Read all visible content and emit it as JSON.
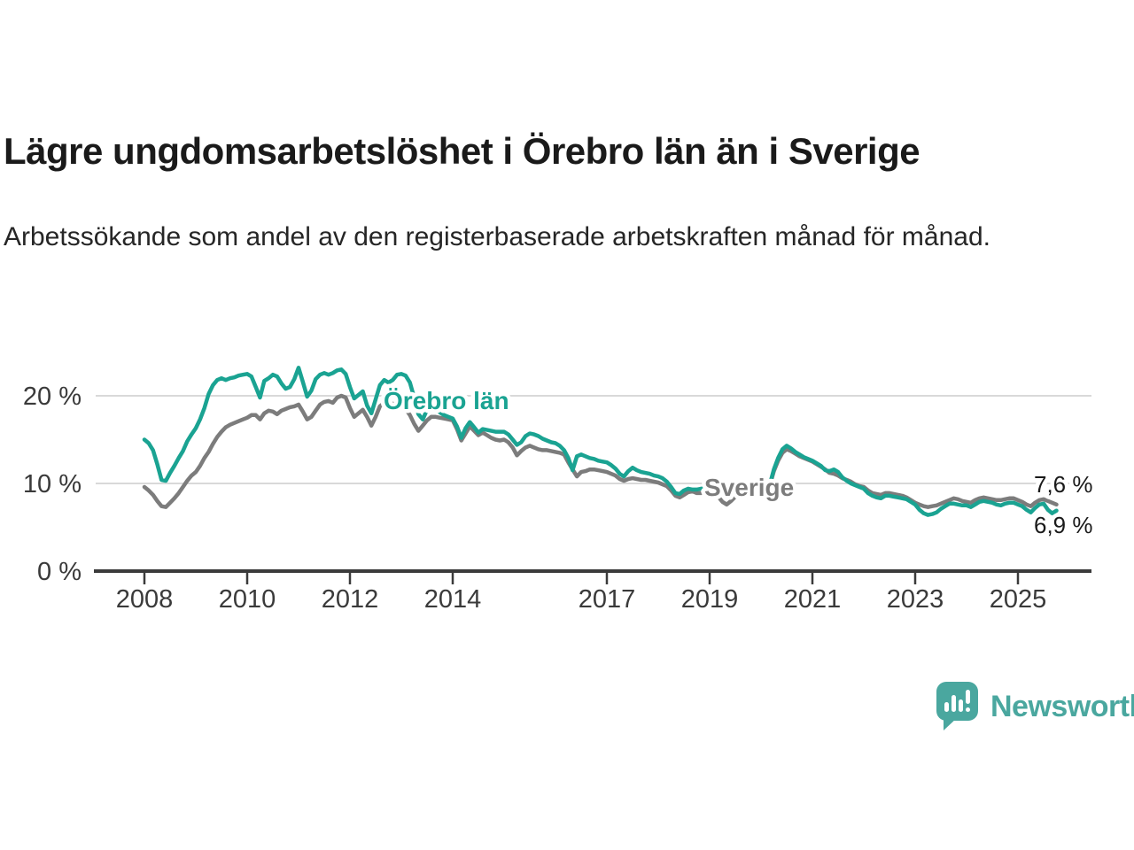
{
  "header": {
    "title": "Lägre ungdomsarbetslöshet i Örebro län än i Sverige",
    "subtitle": "Arbetssökande som andel av den registerbaserade arbetskraften månad för månad."
  },
  "chart_data": {
    "type": "line",
    "unit": "%",
    "frequency": "monthly",
    "x_start": "2008-01",
    "x_end": "2025-10",
    "x_tick_years": [
      2008,
      2010,
      2012,
      2014,
      2017,
      2019,
      2021,
      2023,
      2025
    ],
    "y_ticks": [
      {
        "value": 0,
        "label": "0 %"
      },
      {
        "value": 10,
        "label": "10 %"
      },
      {
        "value": 20,
        "label": "20 %"
      }
    ],
    "grid_values": [
      10,
      20
    ],
    "ylim": [
      0,
      25
    ],
    "grid": true,
    "legend_position": "inline-labels",
    "series": [
      {
        "name": "Örebro län",
        "color": "#1aa392",
        "end_label": "6,9 %",
        "end_value": 6.9,
        "values": [
          15.0,
          14.6,
          13.8,
          12.2,
          10.4,
          10.3,
          11.2,
          12.0,
          12.9,
          13.7,
          14.8,
          15.6,
          16.3,
          17.3,
          18.6,
          20.2,
          21.2,
          21.8,
          22.0,
          21.8,
          22.0,
          22.1,
          22.3,
          22.4,
          22.5,
          22.2,
          21.0,
          19.8,
          21.7,
          22.0,
          22.4,
          22.2,
          21.4,
          20.8,
          21.0,
          21.9,
          23.2,
          21.6,
          19.9,
          20.6,
          21.9,
          22.4,
          22.6,
          22.4,
          22.6,
          22.9,
          23.0,
          22.5,
          21.0,
          19.7,
          20.1,
          20.5,
          18.9,
          18.0,
          19.6,
          21.2,
          21.8,
          21.5,
          21.8,
          22.4,
          22.5,
          22.3,
          21.5,
          19.8,
          17.9,
          17.3,
          18.4,
          18.9,
          18.5,
          18.1,
          17.8,
          17.6,
          17.4,
          16.5,
          15.2,
          16.3,
          17.0,
          16.4,
          15.8,
          16.2,
          16.1,
          16.0,
          15.9,
          15.9,
          15.9,
          15.6,
          15.0,
          14.4,
          14.7,
          15.4,
          15.7,
          15.6,
          15.4,
          15.1,
          14.9,
          14.7,
          14.6,
          14.3,
          13.8,
          12.9,
          11.5,
          13.1,
          13.3,
          13.1,
          12.9,
          12.8,
          12.6,
          12.5,
          12.4,
          12.1,
          11.7,
          11.1,
          10.8,
          11.4,
          11.8,
          11.5,
          11.3,
          11.2,
          11.1,
          10.9,
          10.8,
          10.6,
          10.2,
          9.6,
          8.9,
          8.8,
          9.2,
          9.4,
          9.3,
          9.3,
          9.4,
          9.4,
          9.4,
          9.2,
          8.9,
          8.7,
          8.9,
          9.1,
          9.0,
          8.9,
          8.8,
          8.7,
          8.6,
          8.7,
          8.8,
          8.9,
          9.8,
          11.6,
          12.9,
          13.9,
          14.3,
          14.0,
          13.6,
          13.3,
          13.0,
          12.8,
          12.6,
          12.3,
          12.0,
          11.5,
          11.4,
          11.6,
          11.3,
          10.7,
          10.3,
          10.0,
          9.8,
          9.6,
          9.4,
          8.9,
          8.6,
          8.4,
          8.3,
          8.6,
          8.6,
          8.5,
          8.4,
          8.3,
          8.2,
          7.9,
          7.6,
          7.0,
          6.6,
          6.4,
          6.5,
          6.7,
          7.1,
          7.4,
          7.7,
          7.7,
          7.6,
          7.5,
          7.5,
          7.3,
          7.6,
          7.9,
          8.0,
          7.9,
          7.8,
          7.6,
          7.5,
          7.7,
          7.8,
          7.8,
          7.6,
          7.4,
          7.0,
          6.7,
          7.2,
          7.6,
          7.7,
          7.0,
          6.6,
          6.9
        ]
      },
      {
        "name": "Sverige",
        "color": "#7c7c7c",
        "end_label": "7,6 %",
        "end_value": 7.6,
        "values": [
          9.6,
          9.2,
          8.7,
          8.0,
          7.4,
          7.3,
          7.8,
          8.3,
          8.9,
          9.6,
          10.3,
          10.9,
          11.3,
          12.0,
          12.9,
          13.6,
          14.5,
          15.3,
          15.9,
          16.4,
          16.7,
          16.9,
          17.1,
          17.3,
          17.5,
          17.8,
          17.8,
          17.3,
          18.0,
          18.3,
          18.2,
          17.9,
          18.3,
          18.5,
          18.7,
          18.8,
          19.0,
          18.2,
          17.3,
          17.6,
          18.3,
          19.0,
          19.3,
          19.4,
          19.2,
          19.8,
          20.0,
          19.8,
          18.6,
          17.6,
          18.0,
          18.4,
          17.6,
          16.6,
          17.6,
          18.8,
          19.2,
          18.9,
          19.1,
          19.0,
          18.8,
          18.5,
          17.8,
          16.8,
          16.0,
          16.6,
          17.2,
          17.6,
          17.6,
          17.5,
          17.4,
          17.3,
          17.2,
          16.2,
          14.9,
          15.7,
          16.5,
          16.0,
          15.5,
          15.8,
          15.5,
          15.2,
          15.0,
          14.9,
          15.0,
          14.7,
          14.1,
          13.2,
          13.7,
          14.1,
          14.3,
          14.1,
          13.9,
          13.8,
          13.8,
          13.7,
          13.6,
          13.5,
          13.3,
          12.4,
          11.6,
          10.8,
          11.3,
          11.4,
          11.6,
          11.6,
          11.5,
          11.4,
          11.3,
          11.1,
          10.9,
          10.5,
          10.3,
          10.5,
          10.6,
          10.5,
          10.4,
          10.4,
          10.3,
          10.2,
          10.1,
          9.9,
          9.7,
          9.2,
          8.6,
          8.4,
          8.7,
          9.0,
          9.1,
          8.9,
          8.9,
          9.0,
          9.1,
          8.9,
          8.5,
          7.9,
          7.6,
          8.0,
          8.5,
          8.6,
          8.6,
          8.5,
          8.5,
          8.6,
          8.7,
          8.8,
          9.7,
          11.4,
          12.6,
          13.5,
          13.9,
          13.7,
          13.4,
          13.1,
          12.9,
          12.7,
          12.5,
          12.2,
          11.9,
          11.6,
          11.2,
          11.1,
          10.9,
          10.6,
          10.4,
          10.2,
          9.9,
          9.7,
          9.6,
          9.2,
          8.9,
          8.8,
          8.7,
          8.9,
          8.9,
          8.8,
          8.7,
          8.6,
          8.4,
          8.1,
          7.8,
          7.6,
          7.4,
          7.3,
          7.4,
          7.5,
          7.7,
          7.9,
          8.1,
          8.3,
          8.2,
          8.0,
          7.9,
          7.8,
          8.1,
          8.3,
          8.4,
          8.3,
          8.2,
          8.1,
          8.1,
          8.2,
          8.3,
          8.3,
          8.1,
          7.9,
          7.6,
          7.4,
          7.8,
          8.1,
          8.2,
          8.0,
          7.8,
          7.6
        ]
      }
    ]
  },
  "footer": {
    "brand": "Newsworthy",
    "brand_color": "#4aa79f",
    "logo_icon": "newsworthy-speech-bubble-chart-icon"
  }
}
